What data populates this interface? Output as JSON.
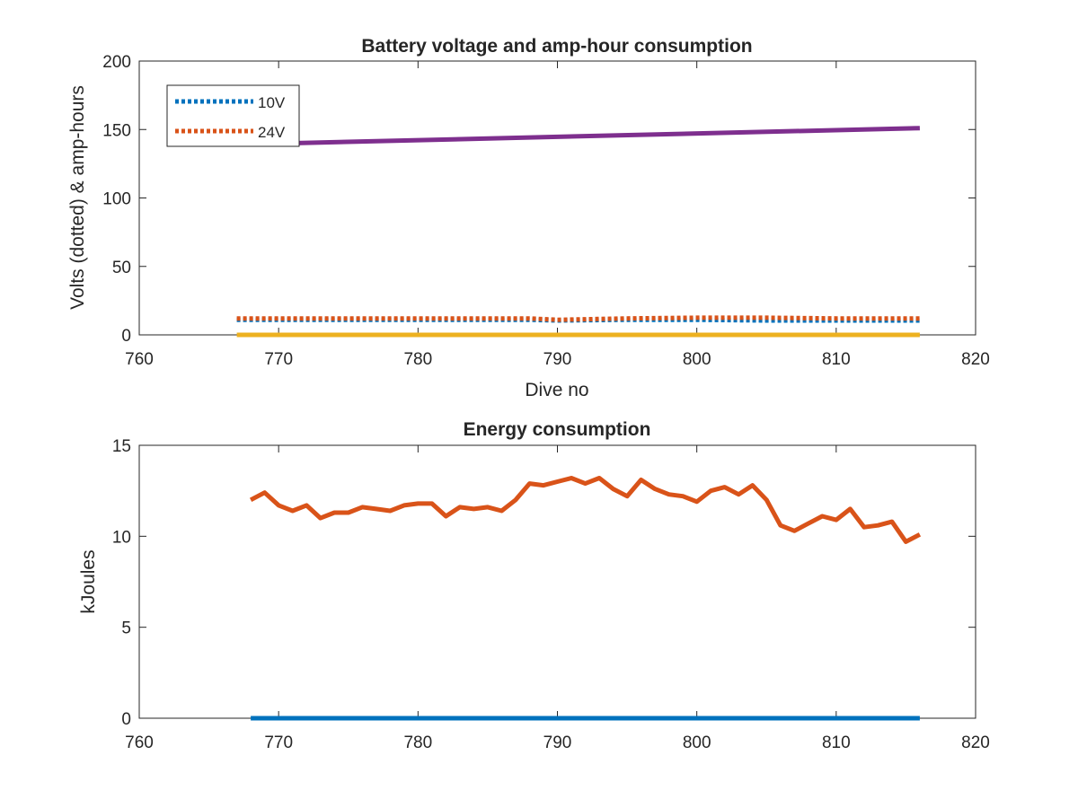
{
  "chart_data": [
    {
      "type": "line",
      "title": "Battery voltage and amp-hour consumption",
      "xlabel": "Dive no",
      "ylabel": "Volts (dotted) & amp-hours",
      "xlim": [
        760,
        820
      ],
      "ylim": [
        0,
        200
      ],
      "xticks": [
        "760",
        "770",
        "780",
        "790",
        "800",
        "810",
        "820"
      ],
      "yticks": [
        "0",
        "50",
        "100",
        "150",
        "200"
      ],
      "grid": false,
      "legend_position": "top-left",
      "series": [
        {
          "name": "10V",
          "style": "dotted",
          "color": "#0072BD",
          "x": [
            767,
            775,
            783,
            788,
            790,
            795,
            800,
            805,
            810,
            816
          ],
          "y": [
            11,
            11,
            11,
            11,
            10.5,
            11,
            11,
            10.5,
            10.5,
            10.5
          ]
        },
        {
          "name": "24V",
          "style": "dotted",
          "color": "#D95319",
          "x": [
            767,
            775,
            783,
            788,
            790,
            795,
            800,
            805,
            810,
            816
          ],
          "y": [
            12,
            12,
            12,
            12,
            11,
            12,
            12.5,
            12.5,
            12,
            12
          ]
        },
        {
          "style": "solid",
          "color": "#EDB120",
          "x": [
            767,
            816
          ],
          "y": [
            0,
            0
          ]
        },
        {
          "style": "solid",
          "color": "#7E2F8E",
          "x": [
            767,
            816
          ],
          "y": [
            139,
            151
          ]
        }
      ]
    },
    {
      "type": "line",
      "title": "Energy consumption",
      "xlabel": "",
      "ylabel": "kJoules",
      "xlim": [
        760,
        820
      ],
      "ylim": [
        0,
        15
      ],
      "xticks": [
        "760",
        "770",
        "780",
        "790",
        "800",
        "810",
        "820"
      ],
      "yticks": [
        "0",
        "5",
        "10",
        "15"
      ],
      "grid": false,
      "series": [
        {
          "style": "solid",
          "color": "#0072BD",
          "x": [
            768,
            816
          ],
          "y": [
            0,
            0
          ]
        },
        {
          "style": "solid",
          "color": "#D95319",
          "x": [
            768,
            769,
            770,
            771,
            772,
            773,
            774,
            775,
            776,
            777,
            778,
            779,
            780,
            781,
            782,
            783,
            784,
            785,
            786,
            787,
            788,
            789,
            790,
            791,
            792,
            793,
            794,
            795,
            796,
            797,
            798,
            799,
            800,
            801,
            802,
            803,
            804,
            805,
            806,
            807,
            808,
            809,
            810,
            811,
            812,
            813,
            814,
            815,
            816
          ],
          "y": [
            12.0,
            12.4,
            11.7,
            11.4,
            11.7,
            11.0,
            11.3,
            11.3,
            11.6,
            11.5,
            11.4,
            11.7,
            11.8,
            11.8,
            11.1,
            11.6,
            11.5,
            11.6,
            11.4,
            12.0,
            12.9,
            12.8,
            13.0,
            13.2,
            12.9,
            13.2,
            12.6,
            12.2,
            13.1,
            12.6,
            12.3,
            12.2,
            11.9,
            12.5,
            12.7,
            12.3,
            12.8,
            12.0,
            10.6,
            10.3,
            10.7,
            11.1,
            10.9,
            11.5,
            10.5,
            10.6,
            10.8,
            9.7,
            10.1
          ]
        }
      ]
    }
  ]
}
